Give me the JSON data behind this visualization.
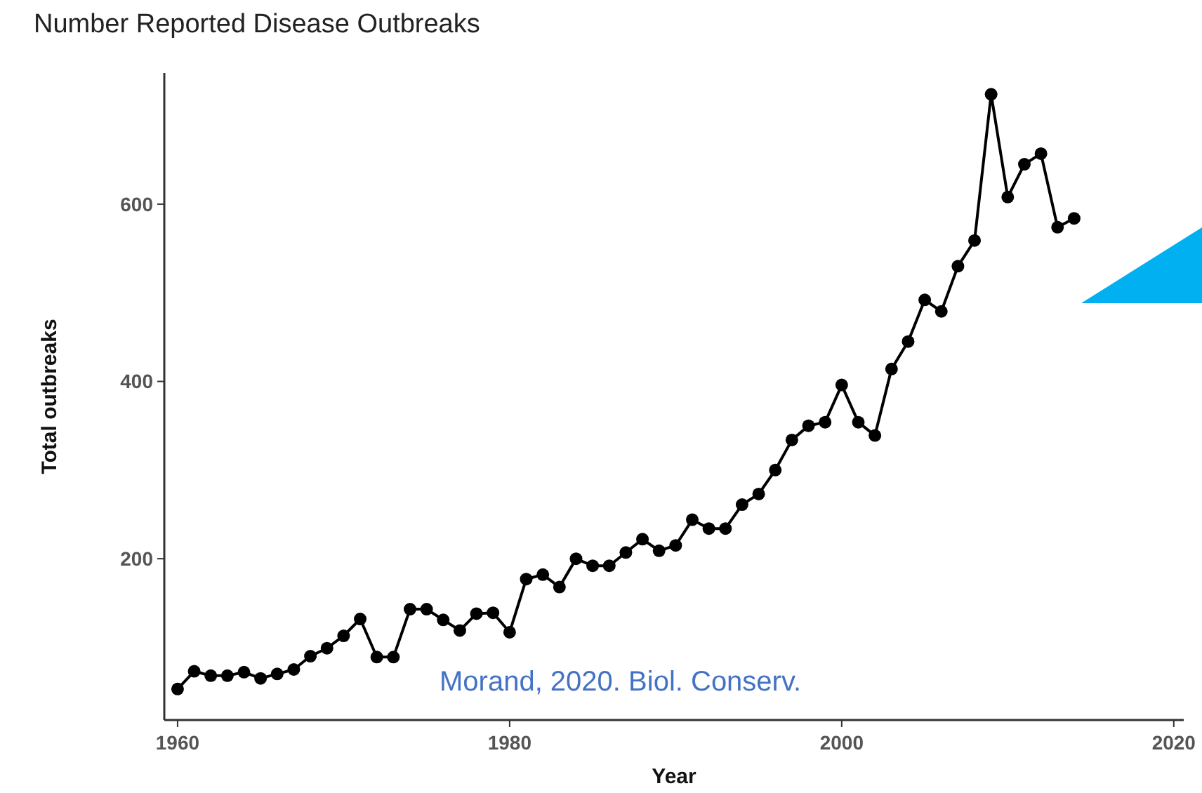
{
  "chart_data": {
    "type": "line",
    "title": "Number Reported Disease Outbreaks",
    "xlabel": "Year",
    "ylabel": "Total outbreaks",
    "annotations": [
      "Morand, 2020. Biol. Conserv."
    ],
    "x": [
      1960,
      1961,
      1962,
      1963,
      1964,
      1965,
      1966,
      1967,
      1968,
      1969,
      1970,
      1971,
      1972,
      1973,
      1974,
      1975,
      1976,
      1977,
      1978,
      1979,
      1980,
      1981,
      1982,
      1983,
      1984,
      1985,
      1986,
      1987,
      1988,
      1989,
      1990,
      1991,
      1992,
      1993,
      1994,
      1995,
      1996,
      1997,
      1998,
      1999,
      2000,
      2001,
      2002,
      2003,
      2004,
      2005,
      2006,
      2007,
      2008,
      2009,
      2010,
      2011,
      2012,
      2013,
      2014
    ],
    "series": [
      {
        "color": "#000000",
        "values": [
          53,
          73,
          68,
          68,
          72,
          65,
          70,
          75,
          90,
          99,
          113,
          132,
          89,
          89,
          143,
          143,
          131,
          119,
          138,
          139,
          117,
          177,
          182,
          168,
          200,
          192,
          192,
          207,
          222,
          209,
          215,
          244,
          234,
          234,
          261,
          273,
          300,
          334,
          350,
          354,
          396,
          354,
          339,
          414,
          445,
          492,
          479,
          530,
          559,
          724,
          608,
          645,
          657,
          574,
          584
        ]
      }
    ],
    "xlim": [
      1959.2,
      2020.6
    ],
    "xticks": [
      1960,
      1980,
      2000,
      2020
    ],
    "ylim": [
      18,
      748
    ],
    "yticks": [
      200,
      400,
      600
    ],
    "grid": false,
    "marker": "circle",
    "line_style": "solid"
  }
}
